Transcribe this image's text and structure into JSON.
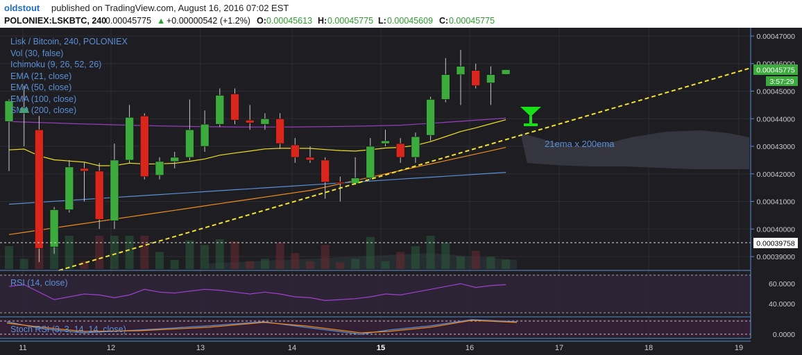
{
  "header": {
    "author": "oldstout",
    "published": "published on TradingView.com, August 16, 2016 07:02 EST",
    "symbol": "POLONIEX:LSKBTC, 240",
    "last": "0.00045775",
    "change_arrow": "▲",
    "change": "+0.00000542 (+1.2%)",
    "o_label": "O:",
    "o_value": "0.00045613",
    "h_label": "H:",
    "h_value": "0.00045775",
    "l_label": "L:",
    "l_value": "0.00045609",
    "c_label": "C:",
    "c_value": "0.00045775"
  },
  "legend": [
    "Lisk / Bitcoin, 240, POLONIEX",
    "Vol (30, false)",
    "Ichimoku (9, 26, 52, 26)",
    "EMA (21, close)",
    "EMA (50, close)",
    "EMA (100, close)",
    "SMA (200, close)"
  ],
  "annotation": "21ema x 200ema",
  "price_axis": [
    "0.00047000",
    "0.00046000",
    "0.00045000",
    "0.00044000",
    "0.00043000",
    "0.00042000",
    "0.00041000",
    "0.00040000",
    "0.00039000"
  ],
  "last_price_label": "0.00045775",
  "countdown": "3:57:29",
  "marker_price_label": "0.00039758",
  "rsi": {
    "label": "RSI (14, close)",
    "axis": [
      "60.0000",
      "40.0000"
    ]
  },
  "stoch": {
    "label": "Stoch RSI (3, 3, 14, 14, close)",
    "axis": [
      "0.0000"
    ]
  },
  "time_axis": [
    "11",
    "12",
    "13",
    "14",
    "15",
    "16",
    "17",
    "18",
    "19"
  ],
  "colors": {
    "background": "#1e1e22",
    "up": "#3daa3d",
    "down": "#d8261c",
    "ema21": "#f0e020",
    "ema50": "#f08c1e",
    "ema100": "#5b8fd6",
    "sma200": "#9a3cc0",
    "trendline": "#f5e332",
    "rsi": "#a040d0",
    "axis_text": "#cccccc"
  },
  "chart_data": {
    "type": "candlestick",
    "title": "Lisk / Bitcoin, 240, POLONIEX",
    "x_categories": [
      "11",
      "12",
      "13",
      "14",
      "15",
      "16",
      "17",
      "18",
      "19"
    ],
    "ylim": [
      0.000387,
      0.000471
    ],
    "candles": [
      {
        "o": 0.000439,
        "h": 0.000447,
        "l": 0.000421,
        "c": 0.0004465
      },
      {
        "o": 0.000442,
        "h": 0.000452,
        "l": 0.00043,
        "c": 0.000444
      },
      {
        "o": 0.000436,
        "h": 0.000441,
        "l": 0.000388,
        "c": 0.000393
      },
      {
        "o": 0.0003935,
        "h": 0.000408,
        "l": 0.000391,
        "c": 0.000407
      },
      {
        "o": 0.000407,
        "h": 0.000425,
        "l": 0.000406,
        "c": 0.0004225
      },
      {
        "o": 0.000422,
        "h": 0.000424,
        "l": 0.00041,
        "c": 0.000421
      },
      {
        "o": 0.000421,
        "h": 0.000424,
        "l": 0.0004,
        "c": 0.0004035
      },
      {
        "o": 0.000403,
        "h": 0.000431,
        "l": 0.0004,
        "c": 0.000425
      },
      {
        "o": 0.000425,
        "h": 0.000445,
        "l": 0.000424,
        "c": 0.0004405
      },
      {
        "o": 0.000441,
        "h": 0.000442,
        "l": 0.000418,
        "c": 0.000419
      },
      {
        "o": 0.0004195,
        "h": 0.000426,
        "l": 0.000418,
        "c": 0.0004245
      },
      {
        "o": 0.0004245,
        "h": 0.000428,
        "l": 0.000422,
        "c": 0.000426
      },
      {
        "o": 0.000426,
        "h": 0.000447,
        "l": 0.000425,
        "c": 0.000436
      },
      {
        "o": 0.00043,
        "h": 0.000443,
        "l": 0.000428,
        "c": 0.000438
      },
      {
        "o": 0.000438,
        "h": 0.000451,
        "l": 0.000437,
        "c": 0.0004485
      },
      {
        "o": 0.000449,
        "h": 0.000451,
        "l": 0.000438,
        "c": 0.0004395
      },
      {
        "o": 0.0004395,
        "h": 0.000445,
        "l": 0.000436,
        "c": 0.0004385
      },
      {
        "o": 0.000438,
        "h": 0.000442,
        "l": 0.000436,
        "c": 0.00044
      },
      {
        "o": 0.00044,
        "h": 0.000442,
        "l": 0.000429,
        "c": 0.000431
      },
      {
        "o": 0.0004305,
        "h": 0.000433,
        "l": 0.000424,
        "c": 0.000426
      },
      {
        "o": 0.000426,
        "h": 0.00043,
        "l": 0.000424,
        "c": 0.000425
      },
      {
        "o": 0.000425,
        "h": 0.000426,
        "l": 0.000411,
        "c": 0.000417
      },
      {
        "o": 0.000417,
        "h": 0.000419,
        "l": 0.00041,
        "c": 0.0004165
      },
      {
        "o": 0.0004165,
        "h": 0.000426,
        "l": 0.000416,
        "c": 0.0004185
      },
      {
        "o": 0.0004185,
        "h": 0.000433,
        "l": 0.000418,
        "c": 0.00043
      },
      {
        "o": 0.000431,
        "h": 0.000436,
        "l": 0.00043,
        "c": 0.000432
      },
      {
        "o": 0.000431,
        "h": 0.000433,
        "l": 0.000424,
        "c": 0.000426
      },
      {
        "o": 0.000426,
        "h": 0.000435,
        "l": 0.000424,
        "c": 0.0004335
      },
      {
        "o": 0.000434,
        "h": 0.000448,
        "l": 0.000432,
        "c": 0.000447
      },
      {
        "o": 0.000447,
        "h": 0.000462,
        "l": 0.000446,
        "c": 0.000456
      },
      {
        "o": 0.000456,
        "h": 0.000465,
        "l": 0.000445,
        "c": 0.000459
      },
      {
        "o": 0.0004575,
        "h": 0.00046,
        "l": 0.000451,
        "c": 0.000452
      },
      {
        "o": 0.000453,
        "h": 0.000459,
        "l": 0.000445,
        "c": 0.000456
      },
      {
        "o": 0.0004561,
        "h": 0.0004578,
        "l": 0.000456,
        "c": 0.0004578
      }
    ]
  }
}
